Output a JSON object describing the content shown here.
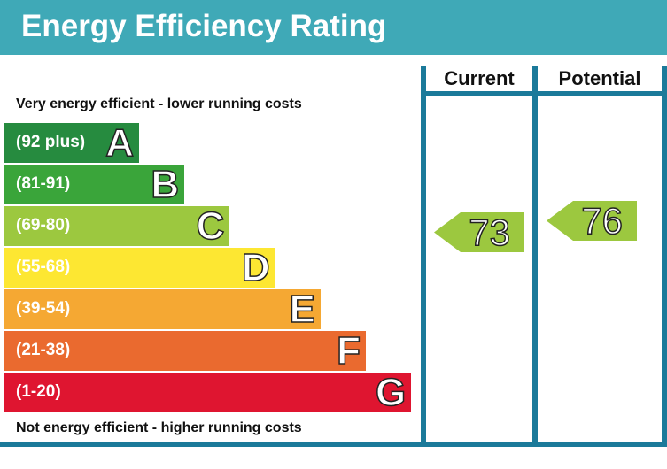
{
  "header": {
    "title": "Energy Efficiency Rating"
  },
  "chart_data": {
    "type": "bar",
    "title": "Energy Efficiency Rating",
    "top_note": "Very energy efficient - lower running costs",
    "bottom_note": "Not energy efficient - higher running costs",
    "columns": [
      "Current",
      "Potential"
    ],
    "bands": [
      {
        "letter": "A",
        "range": "(92 plus)",
        "color": "#268b3f"
      },
      {
        "letter": "B",
        "range": "(81-91)",
        "color": "#3aa53a"
      },
      {
        "letter": "C",
        "range": "(69-80)",
        "color": "#9cc83f"
      },
      {
        "letter": "D",
        "range": "(55-68)",
        "color": "#fde732"
      },
      {
        "letter": "E",
        "range": "(39-54)",
        "color": "#f5a833"
      },
      {
        "letter": "F",
        "range": "(21-38)",
        "color": "#ea6a2f"
      },
      {
        "letter": "G",
        "range": "(1-20)",
        "color": "#df1530"
      }
    ],
    "current": {
      "value": 73,
      "band": "C",
      "color": "#9cc83f"
    },
    "potential": {
      "value": 76,
      "band": "C",
      "color": "#9cc83f"
    }
  }
}
